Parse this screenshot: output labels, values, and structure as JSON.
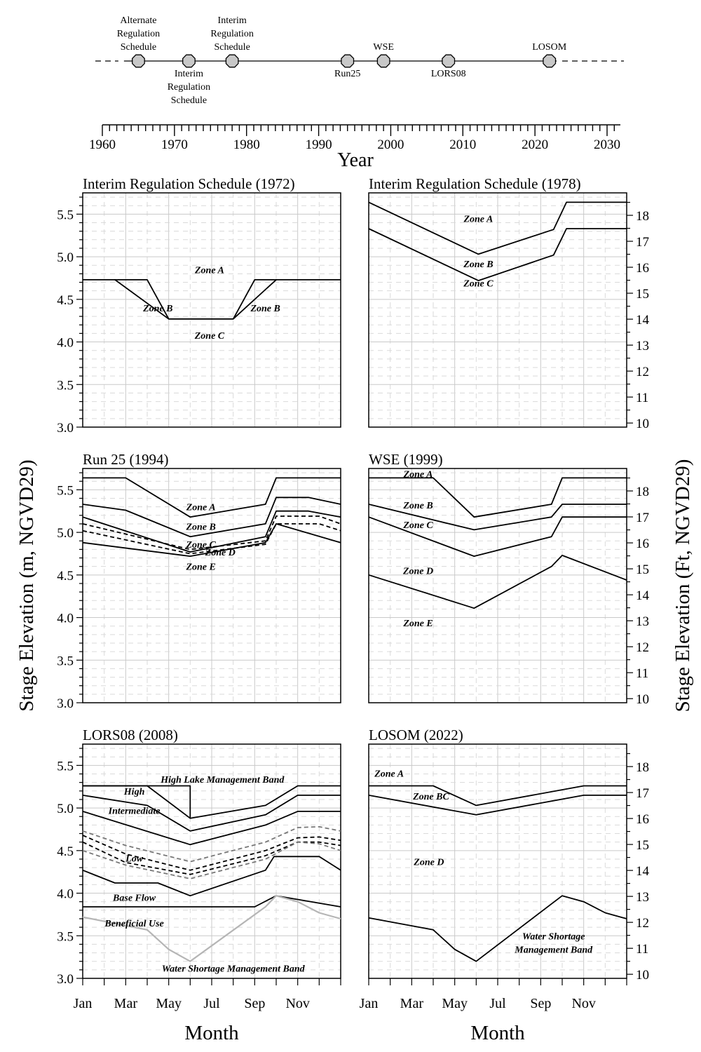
{
  "timeline": {
    "xlabel": "Year",
    "ticks": [
      1960,
      1970,
      1980,
      1990,
      2000,
      2010,
      2020,
      2030
    ],
    "xlim": [
      1958,
      2031
    ],
    "line_range": [
      1963,
      2023
    ],
    "events": [
      {
        "year": 1965,
        "label": [
          "Alternate",
          "Regulation",
          "Schedule"
        ],
        "side": "above"
      },
      {
        "year": 1972,
        "label": [
          "Interim",
          "Regulation",
          "Schedule"
        ],
        "side": "below"
      },
      {
        "year": 1978,
        "label": [
          "Interim",
          "Regulation",
          "Schedule"
        ],
        "side": "above"
      },
      {
        "year": 1994,
        "label": [
          "Run25"
        ],
        "side": "below"
      },
      {
        "year": 1999,
        "label": [
          "WSE"
        ],
        "side": "above"
      },
      {
        "year": 2008,
        "label": [
          "LORS08"
        ],
        "side": "below"
      },
      {
        "year": 2022,
        "label": [
          "LOSOM"
        ],
        "side": "above"
      }
    ]
  },
  "figure": {
    "ylabel_left": "Stage Elevation (m, NGVD29)",
    "ylabel_right": "Stage Elevation (Ft, NGVD29)",
    "xlabel": "Month",
    "month_ticks": [
      "Jan",
      "Mar",
      "May",
      "Jul",
      "Sep",
      "Nov"
    ],
    "m_ticks": [
      "3.0",
      "3.5",
      "4.0",
      "4.5",
      "5.0",
      "5.5"
    ],
    "ft_ticks": [
      "10",
      "11",
      "12",
      "13",
      "14",
      "15",
      "16",
      "17",
      "18"
    ]
  },
  "chart_data": [
    {
      "type": "line",
      "title": "Interim Regulation Schedule (1972)",
      "ylim": [
        3.0,
        5.75
      ],
      "series": [
        {
          "style": "solid",
          "points": [
            [
              0,
              4.73
            ],
            [
              3,
              4.73
            ],
            [
              4,
              4.27
            ],
            [
              7,
              4.27
            ],
            [
              8,
              4.73
            ],
            [
              12,
              4.73
            ]
          ]
        },
        {
          "style": "solid",
          "points": [
            [
              1.5,
              4.73
            ],
            [
              4,
              4.27
            ]
          ]
        },
        {
          "style": "solid",
          "points": [
            [
              7,
              4.27
            ],
            [
              9,
              4.73
            ]
          ]
        }
      ],
      "labels": [
        {
          "text": "Zone A",
          "x": 5.9,
          "y": 4.85
        },
        {
          "text": "Zone B",
          "x": 3.5,
          "y": 4.4
        },
        {
          "text": "Zone B",
          "x": 8.5,
          "y": 4.4
        },
        {
          "text": "Zone C",
          "x": 5.9,
          "y": 4.08
        }
      ]
    },
    {
      "type": "line",
      "title": "Interim Regulation Schedule (1978)",
      "ylim": [
        3.0,
        5.75
      ],
      "series": [
        {
          "style": "solid",
          "points": [
            [
              0,
              5.64
            ],
            [
              5.1,
              5.03
            ],
            [
              8.6,
              5.32
            ],
            [
              9.2,
              5.64
            ],
            [
              12,
              5.64
            ]
          ]
        },
        {
          "style": "solid",
          "points": [
            [
              0,
              5.33
            ],
            [
              5.1,
              4.72
            ],
            [
              8.6,
              5.02
            ],
            [
              9.2,
              5.33
            ],
            [
              12,
              5.33
            ]
          ]
        }
      ],
      "labels": [
        {
          "text": "Zone A",
          "x": 5.1,
          "y": 5.45
        },
        {
          "text": "Zone B",
          "x": 5.1,
          "y": 4.92
        },
        {
          "text": "Zone C",
          "x": 5.1,
          "y": 4.69
        }
      ]
    },
    {
      "type": "line",
      "title": "Run 25 (1994)",
      "ylim": [
        3.0,
        5.75
      ],
      "series": [
        {
          "style": "solid",
          "points": [
            [
              0,
              5.64
            ],
            [
              2,
              5.64
            ],
            [
              5,
              5.18
            ],
            [
              8.5,
              5.33
            ],
            [
              9,
              5.64
            ],
            [
              12,
              5.64
            ]
          ]
        },
        {
          "style": "solid",
          "points": [
            [
              0,
              5.33
            ],
            [
              2,
              5.26
            ],
            [
              5,
              4.95
            ],
            [
              8.5,
              5.1
            ],
            [
              9,
              5.41
            ],
            [
              10.5,
              5.41
            ],
            [
              12,
              5.33
            ]
          ]
        },
        {
          "style": "solid",
          "points": [
            [
              0,
              5.18
            ],
            [
              5,
              4.77
            ],
            [
              8.5,
              4.95
            ],
            [
              9,
              5.25
            ],
            [
              10.5,
              5.25
            ],
            [
              12,
              5.18
            ]
          ]
        },
        {
          "style": "dashed",
          "points": [
            [
              0,
              5.1
            ],
            [
              5,
              4.8
            ],
            [
              8.5,
              4.9
            ],
            [
              9,
              5.19
            ],
            [
              11,
              5.19
            ],
            [
              12,
              5.1
            ]
          ]
        },
        {
          "style": "dashed",
          "points": [
            [
              0,
              5.02
            ],
            [
              5,
              4.75
            ],
            [
              8.5,
              4.86
            ],
            [
              9,
              5.1
            ],
            [
              11,
              5.1
            ],
            [
              12,
              5.02
            ]
          ]
        },
        {
          "style": "solid",
          "points": [
            [
              0,
              4.88
            ],
            [
              5,
              4.72
            ],
            [
              8.5,
              4.88
            ],
            [
              9,
              5.1
            ],
            [
              12,
              4.88
            ]
          ]
        }
      ],
      "labels": [
        {
          "text": "Zone A",
          "x": 5.5,
          "y": 5.3
        },
        {
          "text": "Zone B",
          "x": 5.5,
          "y": 5.07
        },
        {
          "text": "Zone C",
          "x": 5.5,
          "y": 4.86
        },
        {
          "text": "Zone D",
          "x": 6.4,
          "y": 4.77
        },
        {
          "text": "Zone E",
          "x": 5.5,
          "y": 4.6
        }
      ]
    },
    {
      "type": "line",
      "title": "WSE (1999)",
      "ylim": [
        3.0,
        5.75
      ],
      "series": [
        {
          "style": "solid",
          "points": [
            [
              0,
              5.64
            ],
            [
              3,
              5.64
            ],
            [
              4.9,
              5.18
            ],
            [
              8.5,
              5.33
            ],
            [
              9,
              5.64
            ],
            [
              12,
              5.64
            ]
          ]
        },
        {
          "style": "solid",
          "points": [
            [
              0,
              5.33
            ],
            [
              4.9,
              5.03
            ],
            [
              8.5,
              5.18
            ],
            [
              9,
              5.33
            ],
            [
              12,
              5.33
            ]
          ]
        },
        {
          "style": "solid",
          "points": [
            [
              0,
              5.18
            ],
            [
              4.9,
              4.72
            ],
            [
              8.5,
              4.95
            ],
            [
              9,
              5.18
            ],
            [
              12,
              5.18
            ]
          ]
        },
        {
          "style": "solid",
          "points": [
            [
              0,
              4.5
            ],
            [
              4.9,
              4.11
            ],
            [
              8.5,
              4.6
            ],
            [
              9,
              4.73
            ],
            [
              12,
              4.44
            ]
          ]
        }
      ],
      "labels": [
        {
          "text": "Zone A",
          "x": 2.3,
          "y": 5.69
        },
        {
          "text": "Zone B",
          "x": 2.3,
          "y": 5.32
        },
        {
          "text": "Zone C",
          "x": 2.3,
          "y": 5.09
        },
        {
          "text": "Zone D",
          "x": 2.3,
          "y": 4.55
        },
        {
          "text": "Zone E",
          "x": 2.3,
          "y": 3.94
        }
      ]
    },
    {
      "type": "line",
      "title": "LORS08 (2008)",
      "ylim": [
        3.0,
        5.75
      ],
      "series": [
        {
          "style": "solid",
          "points": [
            [
              0,
              5.26
            ],
            [
              5,
              5.26
            ],
            [
              5,
              4.88
            ],
            [
              8.5,
              5.03
            ],
            [
              10,
              5.26
            ],
            [
              12,
              5.26
            ]
          ]
        },
        {
          "style": "solid",
          "points": [
            [
              0,
              5.26
            ],
            [
              3,
              5.26
            ],
            [
              5,
              4.88
            ]
          ]
        },
        {
          "style": "solid",
          "points": [
            [
              0,
              5.15
            ],
            [
              3,
              5.03
            ],
            [
              5,
              4.73
            ],
            [
              8.5,
              4.92
            ],
            [
              10,
              5.15
            ],
            [
              12,
              5.15
            ]
          ]
        },
        {
          "style": "solid",
          "points": [
            [
              0,
              4.96
            ],
            [
              5,
              4.57
            ],
            [
              8.5,
              4.8
            ],
            [
              10,
              4.96
            ],
            [
              12,
              4.96
            ]
          ]
        },
        {
          "style": "dashed-gray",
          "points": [
            [
              0,
              4.73
            ],
            [
              2,
              4.56
            ],
            [
              5,
              4.37
            ],
            [
              8.5,
              4.6
            ],
            [
              10,
              4.77
            ],
            [
              11,
              4.78
            ],
            [
              12,
              4.73
            ]
          ]
        },
        {
          "style": "dashed",
          "points": [
            [
              0,
              4.68
            ],
            [
              2,
              4.46
            ],
            [
              5,
              4.27
            ],
            [
              8.5,
              4.5
            ],
            [
              10,
              4.65
            ],
            [
              11,
              4.66
            ],
            [
              12,
              4.62
            ]
          ]
        },
        {
          "style": "dashed",
          "points": [
            [
              0,
              4.6
            ],
            [
              2,
              4.36
            ],
            [
              5,
              4.22
            ],
            [
              8.5,
              4.44
            ],
            [
              10,
              4.6
            ],
            [
              11,
              4.6
            ],
            [
              12,
              4.56
            ]
          ]
        },
        {
          "style": "dashed-gray",
          "points": [
            [
              0,
              4.5
            ],
            [
              2,
              4.33
            ],
            [
              5,
              4.17
            ],
            [
              8.5,
              4.4
            ],
            [
              10,
              4.6
            ],
            [
              11,
              4.58
            ],
            [
              12,
              4.5
            ]
          ]
        },
        {
          "style": "solid",
          "points": [
            [
              0,
              4.27
            ],
            [
              1.5,
              4.12
            ],
            [
              3.5,
              4.12
            ],
            [
              5,
              3.97
            ],
            [
              8.5,
              4.27
            ],
            [
              8.9,
              4.43
            ],
            [
              11,
              4.43
            ],
            [
              12,
              4.27
            ]
          ]
        },
        {
          "style": "solid",
          "points": [
            [
              0,
              3.84
            ],
            [
              8,
              3.84
            ],
            [
              9,
              3.97
            ],
            [
              12,
              3.84
            ]
          ]
        },
        {
          "style": "gray",
          "points": [
            [
              0,
              3.72
            ],
            [
              3,
              3.57
            ],
            [
              4,
              3.34
            ],
            [
              5,
              3.2
            ],
            [
              8.5,
              3.84
            ],
            [
              9,
              3.97
            ],
            [
              10,
              3.9
            ],
            [
              11,
              3.77
            ],
            [
              12,
              3.7
            ]
          ]
        }
      ],
      "labels": [
        {
          "text": "High Lake Management Band",
          "x": 6.5,
          "y": 5.34
        },
        {
          "text": "High",
          "x": 2.4,
          "y": 5.2
        },
        {
          "text": "Intermediate",
          "x": 2.4,
          "y": 4.97
        },
        {
          "text": "Low",
          "x": 2.4,
          "y": 4.41
        },
        {
          "text": "Base Flow",
          "x": 2.4,
          "y": 3.95
        },
        {
          "text": "Beneficial Use",
          "x": 2.4,
          "y": 3.65
        },
        {
          "text": "Water Shortage Management Band",
          "x": 7.0,
          "y": 3.12
        }
      ]
    },
    {
      "type": "line",
      "title": "LOSOM (2022)",
      "ylim": [
        3.0,
        5.75
      ],
      "series": [
        {
          "style": "solid",
          "points": [
            [
              0,
              5.26
            ],
            [
              3,
              5.26
            ],
            [
              5,
              5.03
            ],
            [
              10,
              5.26
            ],
            [
              12,
              5.26
            ]
          ]
        },
        {
          "style": "solid",
          "points": [
            [
              0,
              5.15
            ],
            [
              5,
              4.92
            ],
            [
              10,
              5.15
            ],
            [
              12,
              5.15
            ]
          ]
        },
        {
          "style": "solid",
          "points": [
            [
              0,
              3.71
            ],
            [
              3,
              3.57
            ],
            [
              4,
              3.34
            ],
            [
              5,
              3.2
            ],
            [
              9,
              3.97
            ],
            [
              10,
              3.9
            ],
            [
              11,
              3.77
            ],
            [
              12,
              3.7
            ]
          ]
        }
      ],
      "labels": [
        {
          "text": "Zone A",
          "x": 0.95,
          "y": 5.41
        },
        {
          "text": "Zone BC",
          "x": 2.9,
          "y": 5.14
        },
        {
          "text": "Zone D",
          "x": 2.8,
          "y": 4.37
        },
        {
          "text": "Water Shortage",
          "x": 8.6,
          "y": 3.5
        },
        {
          "text": "Management Band",
          "x": 8.6,
          "y": 3.34
        }
      ]
    }
  ]
}
